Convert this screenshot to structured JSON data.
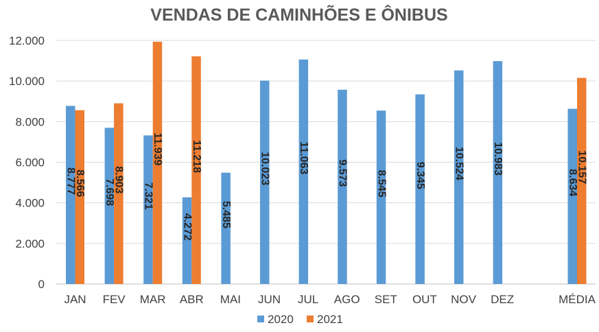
{
  "chart_data": {
    "type": "bar",
    "title": "VENDAS DE CAMINHÕES E ÔNIBUS",
    "xlabel": "",
    "ylabel": "",
    "categories": [
      "JAN",
      "FEV",
      "MAR",
      "ABR",
      "MAI",
      "JUN",
      "JUL",
      "AGO",
      "SET",
      "OUT",
      "NOV",
      "DEZ",
      "MÉDIA"
    ],
    "ylim": [
      0,
      12000
    ],
    "yticks": [
      "0",
      "2.000",
      "4.000",
      "6.000",
      "8.000",
      "10.000",
      "12.000"
    ],
    "ytick_values": [
      0,
      2000,
      4000,
      6000,
      8000,
      10000,
      12000
    ],
    "grid": true,
    "legend_position": "bottom",
    "series": [
      {
        "name": "2020",
        "color": "#5b9bd5",
        "values": [
          8777,
          7698,
          7321,
          4272,
          5485,
          10023,
          11063,
          9573,
          8545,
          9345,
          10524,
          10983,
          8634
        ],
        "labels": [
          "8.777",
          "7.698",
          "7.321",
          "4.272",
          "5.485",
          "10.023",
          "11.063",
          "9.573",
          "8.545",
          "9.345",
          "10.524",
          "10.983",
          "8.634"
        ]
      },
      {
        "name": "2021",
        "color": "#ed7d31",
        "values": [
          8566,
          8903,
          11939,
          11218,
          null,
          null,
          null,
          null,
          null,
          null,
          null,
          null,
          10157
        ],
        "labels": [
          "8.566",
          "8.903",
          "11.939",
          "11.218",
          null,
          null,
          null,
          null,
          null,
          null,
          null,
          null,
          "10.157"
        ]
      }
    ]
  }
}
